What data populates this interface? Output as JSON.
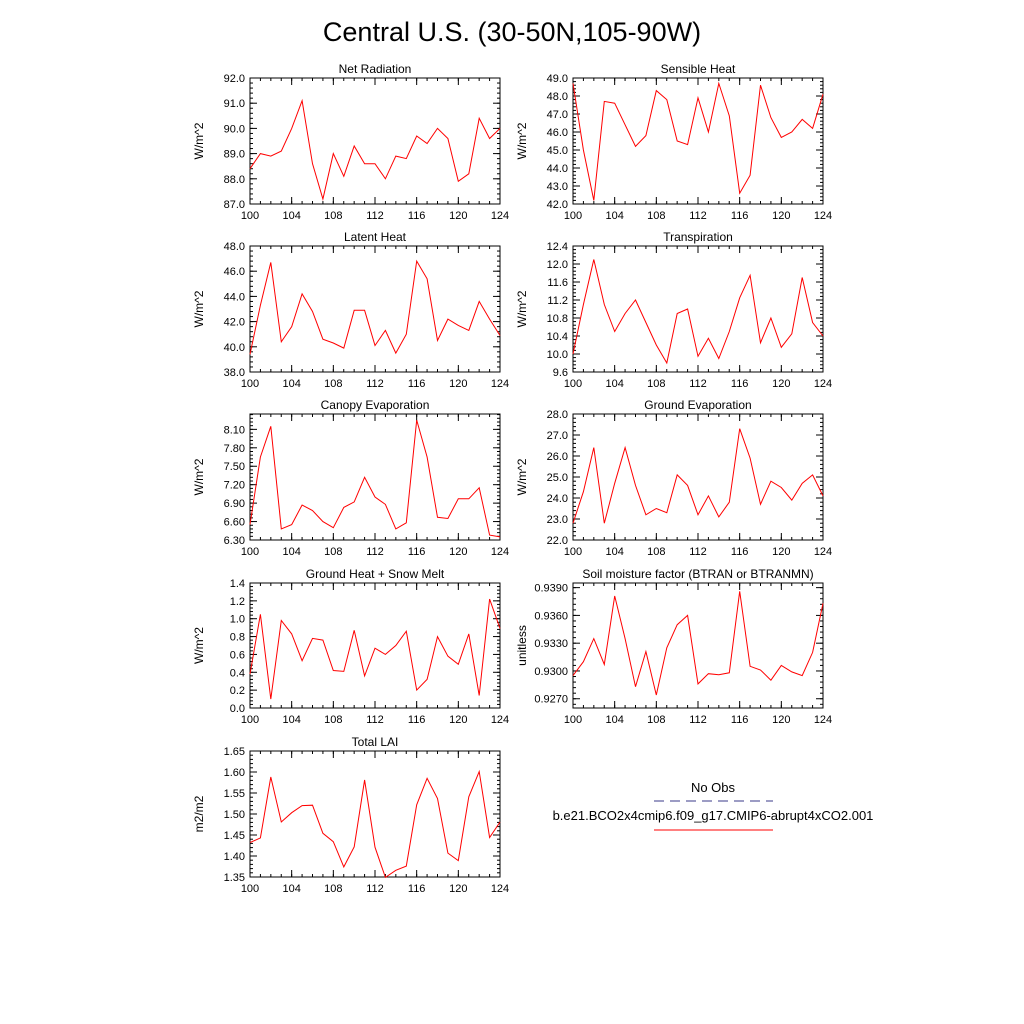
{
  "page": {
    "title": "Central U.S. (30-50N,105-90W)"
  },
  "legend": {
    "entries": [
      {
        "label": "No Obs",
        "color": "#3a3a8a",
        "dashed": true
      },
      {
        "label": "b.e21.BCO2x4cmip6.f09_g17.CMIP6-abrupt4xCO2.001",
        "color": "#ff0000",
        "dashed": false
      }
    ]
  },
  "chart_data": [
    {
      "type": "line",
      "title": "Net Radiation",
      "ylabel": "W/m^2",
      "xlim": [
        100,
        124
      ],
      "ylim": [
        87.0,
        92.0
      ],
      "xticks": [
        "100",
        "104",
        "108",
        "112",
        "116",
        "120",
        "124"
      ],
      "yticks": [
        "87.0",
        "88.0",
        "89.0",
        "90.0",
        "91.0",
        "92.0"
      ],
      "series": [
        {
          "color": "#ff0000",
          "x": [
            100,
            101,
            102,
            103,
            104,
            105,
            106,
            107,
            108,
            109,
            110,
            111,
            112,
            113,
            114,
            115,
            116,
            117,
            118,
            119,
            120,
            121,
            122,
            123,
            124
          ],
          "values": [
            88.4,
            89.0,
            88.9,
            89.1,
            90.0,
            91.1,
            88.6,
            87.2,
            89.0,
            88.1,
            89.3,
            88.6,
            88.6,
            88.0,
            88.9,
            88.8,
            89.7,
            89.4,
            90.0,
            89.6,
            87.9,
            88.2,
            90.4,
            89.6,
            90.0
          ]
        }
      ]
    },
    {
      "type": "line",
      "title": "Sensible Heat",
      "ylabel": "W/m^2",
      "xlim": [
        100,
        124
      ],
      "ylim": [
        42.0,
        49.0
      ],
      "xticks": [
        "100",
        "104",
        "108",
        "112",
        "116",
        "120",
        "124"
      ],
      "yticks": [
        "42.0",
        "43.0",
        "44.0",
        "45.0",
        "46.0",
        "47.0",
        "48.0",
        "49.0"
      ],
      "series": [
        {
          "color": "#ff0000",
          "x": [
            100,
            101,
            102,
            103,
            104,
            105,
            106,
            107,
            108,
            109,
            110,
            111,
            112,
            113,
            114,
            115,
            116,
            117,
            118,
            119,
            120,
            121,
            122,
            123,
            124
          ],
          "values": [
            48.7,
            45.0,
            42.2,
            47.7,
            47.6,
            46.4,
            45.2,
            45.8,
            48.3,
            47.8,
            45.5,
            45.3,
            47.9,
            46.0,
            48.7,
            46.9,
            42.6,
            43.6,
            48.6,
            46.8,
            45.7,
            46.0,
            46.7,
            46.2,
            48.1
          ]
        }
      ]
    },
    {
      "type": "line",
      "title": "Latent Heat",
      "ylabel": "W/m^2",
      "xlim": [
        100,
        124
      ],
      "ylim": [
        38.0,
        48.0
      ],
      "xticks": [
        "100",
        "104",
        "108",
        "112",
        "116",
        "120",
        "124"
      ],
      "yticks": [
        "38.0",
        "40.0",
        "42.0",
        "44.0",
        "46.0",
        "48.0"
      ],
      "series": [
        {
          "color": "#ff0000",
          "x": [
            100,
            101,
            102,
            103,
            104,
            105,
            106,
            107,
            108,
            109,
            110,
            111,
            112,
            113,
            114,
            115,
            116,
            117,
            118,
            119,
            120,
            121,
            122,
            123,
            124
          ],
          "values": [
            39.4,
            43.3,
            46.7,
            40.4,
            41.6,
            44.2,
            42.8,
            40.6,
            40.3,
            39.9,
            42.9,
            42.9,
            40.1,
            41.3,
            39.5,
            41.0,
            46.8,
            45.4,
            40.5,
            42.2,
            41.7,
            41.3,
            43.6,
            42.2,
            40.9
          ]
        }
      ]
    },
    {
      "type": "line",
      "title": "Transpiration",
      "ylabel": "W/m^2",
      "xlim": [
        100,
        124
      ],
      "ylim": [
        9.6,
        12.4
      ],
      "xticks": [
        "100",
        "104",
        "108",
        "112",
        "116",
        "120",
        "124"
      ],
      "yticks": [
        "9.6",
        "10.0",
        "10.4",
        "10.8",
        "11.2",
        "11.6",
        "12.0",
        "12.4"
      ],
      "series": [
        {
          "color": "#ff0000",
          "x": [
            100,
            101,
            102,
            103,
            104,
            105,
            106,
            107,
            108,
            109,
            110,
            111,
            112,
            113,
            114,
            115,
            116,
            117,
            118,
            119,
            120,
            121,
            122,
            123,
            124
          ],
          "values": [
            10.0,
            11.1,
            12.1,
            11.1,
            10.5,
            10.9,
            11.2,
            10.7,
            10.2,
            9.8,
            10.9,
            11.0,
            9.95,
            10.35,
            9.9,
            10.5,
            11.25,
            11.75,
            10.25,
            10.8,
            10.15,
            10.45,
            11.7,
            10.7,
            10.4
          ]
        }
      ]
    },
    {
      "type": "line",
      "title": "Canopy Evaporation",
      "ylabel": "W/m^2",
      "xlim": [
        100,
        124
      ],
      "ylim": [
        6.3,
        8.35
      ],
      "xticks": [
        "100",
        "104",
        "108",
        "112",
        "116",
        "120",
        "124"
      ],
      "yticks": [
        "6.30",
        "6.60",
        "6.90",
        "7.20",
        "7.50",
        "7.80",
        "8.10"
      ],
      "series": [
        {
          "color": "#ff0000",
          "x": [
            100,
            101,
            102,
            103,
            104,
            105,
            106,
            107,
            108,
            109,
            110,
            111,
            112,
            113,
            114,
            115,
            116,
            117,
            118,
            119,
            120,
            121,
            122,
            123,
            124
          ],
          "values": [
            6.55,
            7.65,
            8.15,
            6.48,
            6.55,
            6.87,
            6.78,
            6.6,
            6.5,
            6.83,
            6.92,
            7.32,
            7.0,
            6.88,
            6.48,
            6.58,
            8.25,
            7.65,
            6.67,
            6.65,
            6.97,
            6.97,
            7.15,
            6.38,
            6.35
          ]
        }
      ]
    },
    {
      "type": "line",
      "title": "Ground Evaporation",
      "ylabel": "W/m^2",
      "xlim": [
        100,
        124
      ],
      "ylim": [
        22.0,
        28.0
      ],
      "xticks": [
        "100",
        "104",
        "108",
        "112",
        "116",
        "120",
        "124"
      ],
      "yticks": [
        "22.0",
        "23.0",
        "24.0",
        "25.0",
        "26.0",
        "27.0",
        "28.0"
      ],
      "series": [
        {
          "color": "#ff0000",
          "x": [
            100,
            101,
            102,
            103,
            104,
            105,
            106,
            107,
            108,
            109,
            110,
            111,
            112,
            113,
            114,
            115,
            116,
            117,
            118,
            119,
            120,
            121,
            122,
            123,
            124
          ],
          "values": [
            22.8,
            24.3,
            26.4,
            22.8,
            24.7,
            26.4,
            24.6,
            23.2,
            23.5,
            23.3,
            25.1,
            24.6,
            23.2,
            24.1,
            23.1,
            23.8,
            27.3,
            25.9,
            23.7,
            24.8,
            24.5,
            23.9,
            24.7,
            25.1,
            24.1
          ]
        }
      ]
    },
    {
      "type": "line",
      "title": "Ground Heat + Snow Melt",
      "ylabel": "W/m^2",
      "xlim": [
        100,
        124
      ],
      "ylim": [
        0.0,
        1.4
      ],
      "xticks": [
        "100",
        "104",
        "108",
        "112",
        "116",
        "120",
        "124"
      ],
      "yticks": [
        "0.0",
        "0.2",
        "0.4",
        "0.6",
        "0.8",
        "1.0",
        "1.2",
        "1.4"
      ],
      "series": [
        {
          "color": "#ff0000",
          "x": [
            100,
            101,
            102,
            103,
            104,
            105,
            106,
            107,
            108,
            109,
            110,
            111,
            112,
            113,
            114,
            115,
            116,
            117,
            118,
            119,
            120,
            121,
            122,
            123,
            124
          ],
          "values": [
            0.38,
            1.05,
            0.1,
            0.98,
            0.83,
            0.53,
            0.78,
            0.76,
            0.42,
            0.41,
            0.87,
            0.36,
            0.67,
            0.6,
            0.7,
            0.86,
            0.2,
            0.32,
            0.8,
            0.58,
            0.49,
            0.83,
            0.14,
            1.22,
            0.89
          ]
        }
      ]
    },
    {
      "type": "line",
      "title": "Soil moisture factor (BTRAN or BTRANMN)",
      "ylabel": "unitless",
      "xlim": [
        100,
        124
      ],
      "ylim": [
        0.926,
        0.9395
      ],
      "xticks": [
        "100",
        "104",
        "108",
        "112",
        "116",
        "120",
        "124"
      ],
      "yticks": [
        "0.9270",
        "0.9300",
        "0.9330",
        "0.9360",
        "0.9390"
      ],
      "series": [
        {
          "color": "#ff0000",
          "x": [
            100,
            101,
            102,
            103,
            104,
            105,
            106,
            107,
            108,
            109,
            110,
            111,
            112,
            113,
            114,
            115,
            116,
            117,
            118,
            119,
            120,
            121,
            122,
            123,
            124
          ],
          "values": [
            0.9295,
            0.931,
            0.9335,
            0.9307,
            0.9381,
            0.9335,
            0.9283,
            0.9321,
            0.9274,
            0.9325,
            0.935,
            0.936,
            0.9286,
            0.9297,
            0.9296,
            0.9298,
            0.9386,
            0.9305,
            0.9301,
            0.929,
            0.9306,
            0.9299,
            0.9295,
            0.932,
            0.9373
          ]
        }
      ]
    },
    {
      "type": "line",
      "title": "Total LAI",
      "ylabel": "m2/m2",
      "xlim": [
        100,
        124
      ],
      "ylim": [
        1.35,
        1.65
      ],
      "xticks": [
        "100",
        "104",
        "108",
        "112",
        "116",
        "120",
        "124"
      ],
      "yticks": [
        "1.35",
        "1.40",
        "1.45",
        "1.50",
        "1.55",
        "1.60",
        "1.65"
      ],
      "series": [
        {
          "color": "#ff0000",
          "x": [
            100,
            101,
            102,
            103,
            104,
            105,
            106,
            107,
            108,
            109,
            110,
            111,
            112,
            113,
            114,
            115,
            116,
            117,
            118,
            119,
            120,
            121,
            122,
            123,
            124
          ],
          "values": [
            1.432,
            1.443,
            1.588,
            1.481,
            1.503,
            1.52,
            1.521,
            1.454,
            1.434,
            1.374,
            1.422,
            1.581,
            1.421,
            1.349,
            1.366,
            1.376,
            1.522,
            1.585,
            1.537,
            1.407,
            1.389,
            1.541,
            1.601,
            1.444,
            1.481
          ]
        }
      ]
    }
  ]
}
